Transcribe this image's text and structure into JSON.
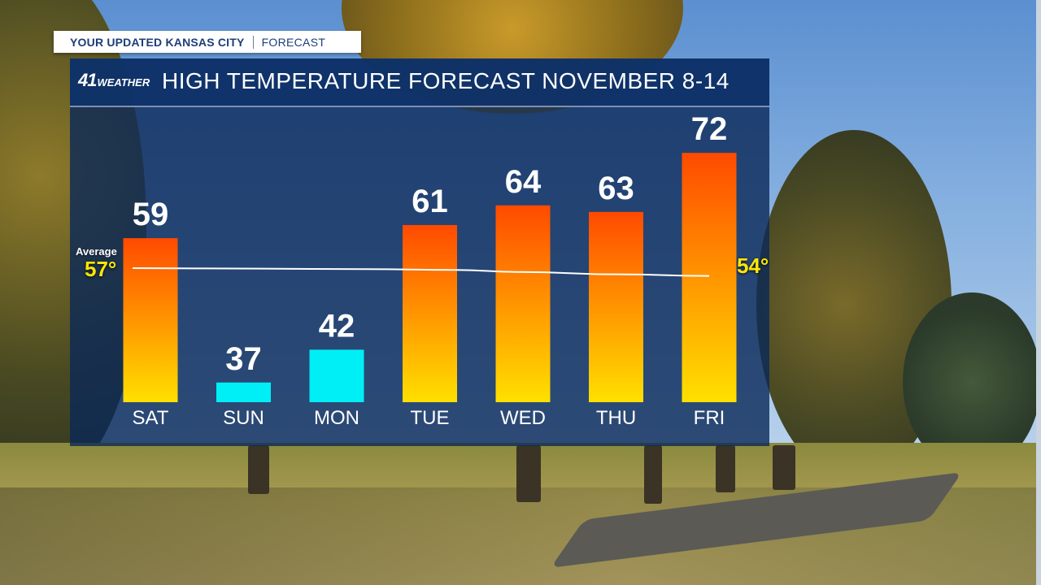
{
  "header": {
    "title": "YOUR UPDATED KANSAS CITY",
    "subtitle": "FORECAST"
  },
  "logo": {
    "number": "41",
    "word": "WEATHER"
  },
  "colors": {
    "warm_top": "#ff4a00",
    "warm_bottom": "#ffe000",
    "cold": "#00eef6",
    "panel": "#0a2858"
  },
  "average": {
    "label": "Average",
    "start_label": "57°",
    "end_label": "54°",
    "start_value": 57,
    "end_value": 54
  },
  "chart_data": {
    "type": "bar",
    "title": "HIGH TEMPERATURE FORECAST NOVEMBER 8-14",
    "categories": [
      "SAT",
      "SUN",
      "MON",
      "TUE",
      "WED",
      "THU",
      "FRI"
    ],
    "values": [
      59,
      37,
      42,
      61,
      64,
      63,
      72
    ],
    "value_labels": [
      "59",
      "37",
      "42",
      "61",
      "64",
      "63",
      "72"
    ],
    "bar_style": [
      "warm",
      "cold",
      "cold",
      "warm",
      "warm",
      "warm",
      "warm"
    ],
    "average_line": [
      57,
      56.8,
      56.6,
      56.3,
      55.5,
      54.6,
      54
    ],
    "xlabel": "",
    "ylabel": "",
    "ylim": [
      34,
      74
    ],
    "grid": false
  }
}
